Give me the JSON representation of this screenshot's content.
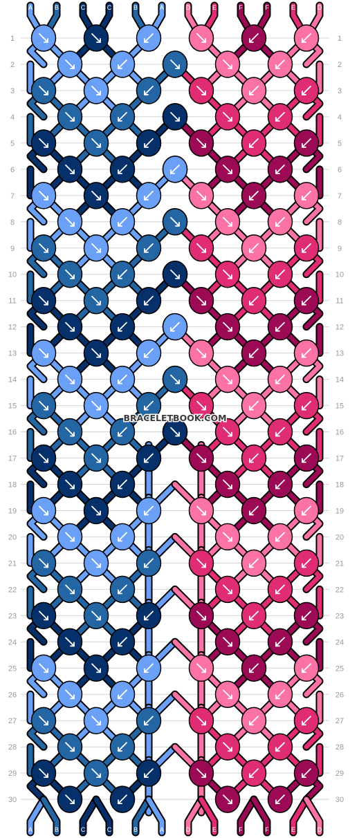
{
  "watermark": "BRACELETBOOK.COM",
  "colors": {
    "A": "#6aa0f5",
    "B": "#2465a4",
    "C": "#06306a",
    "D": "#fb72a6",
    "E": "#df2c72",
    "F": "#9c0954",
    "outline": "#000000",
    "grid": "#d4d4d4",
    "row_label": "#9a9a9a"
  },
  "strands_top": [
    "A",
    "B",
    "C",
    "C",
    "B",
    "A",
    "D",
    "E",
    "F",
    "F",
    "E",
    "D"
  ],
  "strands_bottom": [
    "A",
    "B",
    "C",
    "C",
    "B",
    "A",
    "D",
    "E",
    "F",
    "F",
    "E",
    "D"
  ],
  "row_numbers": [
    "1",
    "2",
    "3",
    "4",
    "5",
    "6",
    "7",
    "8",
    "9",
    "10",
    "11",
    "12",
    "13",
    "14",
    "15",
    "16",
    "17",
    "18",
    "19",
    "20",
    "21",
    "22",
    "23",
    "24",
    "25",
    "26",
    "27",
    "28",
    "29",
    "30"
  ],
  "left_panel_rows": [
    {
      "row": "1",
      "knots": [
        [
          "A",
          "dr"
        ],
        [
          "C",
          "dr"
        ],
        [
          "A",
          "dl"
        ]
      ]
    },
    {
      "row": "2",
      "knots": [
        [
          "A",
          "dr"
        ],
        [
          "A",
          "dl"
        ],
        [
          "B",
          "dr"
        ]
      ]
    },
    {
      "row": "3",
      "knots": [
        [
          "B",
          "dr"
        ],
        [
          "A",
          "dr"
        ],
        [
          "B",
          "dl"
        ]
      ]
    },
    {
      "row": "4",
      "knots": [
        [
          "B",
          "dr"
        ],
        [
          "B",
          "dl"
        ],
        [
          "C",
          "dr"
        ]
      ]
    },
    {
      "row": "5",
      "knots": [
        [
          "C",
          "dr"
        ],
        [
          "B",
          "dr"
        ],
        [
          "C",
          "dl"
        ]
      ]
    },
    {
      "row": "6",
      "knots": [
        [
          "C",
          "dr"
        ],
        [
          "C",
          "dl"
        ],
        [
          "A",
          "dl"
        ]
      ]
    },
    {
      "row": "7",
      "knots": [
        [
          "A",
          "dr"
        ],
        [
          "C",
          "dr"
        ],
        [
          "A",
          "dl"
        ]
      ]
    },
    {
      "row": "8",
      "knots": [
        [
          "A",
          "dr"
        ],
        [
          "A",
          "dl"
        ],
        [
          "B",
          "dr"
        ]
      ]
    },
    {
      "row": "9",
      "knots": [
        [
          "B",
          "dr"
        ],
        [
          "A",
          "dr"
        ],
        [
          "B",
          "dl"
        ]
      ]
    },
    {
      "row": "10",
      "knots": [
        [
          "B",
          "dr"
        ],
        [
          "B",
          "dl"
        ],
        [
          "C",
          "dr"
        ]
      ]
    },
    {
      "row": "11",
      "knots": [
        [
          "C",
          "dr"
        ],
        [
          "B",
          "dr"
        ],
        [
          "C",
          "dl"
        ]
      ]
    },
    {
      "row": "12",
      "knots": [
        [
          "C",
          "dr"
        ],
        [
          "C",
          "dl"
        ],
        [
          "A",
          "dl"
        ]
      ]
    },
    {
      "row": "13",
      "knots": [
        [
          "A",
          "dr"
        ],
        [
          "C",
          "dr"
        ],
        [
          "A",
          "dl"
        ]
      ]
    },
    {
      "row": "14",
      "knots": [
        [
          "A",
          "dr"
        ],
        [
          "A",
          "dl"
        ],
        [
          "B",
          "dr"
        ]
      ]
    },
    {
      "row": "15",
      "knots": [
        [
          "B",
          "dr"
        ],
        [
          "A",
          "dr"
        ],
        [
          "B",
          "dl"
        ]
      ]
    },
    {
      "row": "16",
      "knots": [
        [
          "B",
          "dr"
        ],
        [
          "B",
          "dl"
        ],
        [
          "C",
          "dr"
        ]
      ]
    },
    {
      "row": "17",
      "knots": [
        [
          "C",
          "dr"
        ],
        [
          "B",
          "dr"
        ],
        [
          "C",
          "dl"
        ]
      ]
    },
    {
      "row": "18",
      "knots": [
        [
          "C",
          "dr"
        ],
        [
          "C",
          "dl"
        ]
      ]
    },
    {
      "row": "19",
      "knots": [
        [
          "A",
          "dr"
        ],
        [
          "C",
          "dr"
        ],
        [
          "A",
          "dl"
        ]
      ]
    },
    {
      "row": "20",
      "knots": [
        [
          "A",
          "dr"
        ],
        [
          "A",
          "dl"
        ]
      ]
    },
    {
      "row": "21",
      "knots": [
        [
          "B",
          "dr"
        ],
        [
          "A",
          "dr"
        ],
        [
          "B",
          "dl"
        ]
      ]
    },
    {
      "row": "22",
      "knots": [
        [
          "B",
          "dr"
        ],
        [
          "B",
          "dl"
        ]
      ]
    },
    {
      "row": "23",
      "knots": [
        [
          "C",
          "dr"
        ],
        [
          "B",
          "dr"
        ],
        [
          "C",
          "dl"
        ]
      ]
    },
    {
      "row": "24",
      "knots": [
        [
          "C",
          "dr"
        ],
        [
          "C",
          "dl"
        ]
      ]
    },
    {
      "row": "25",
      "knots": [
        [
          "A",
          "dr"
        ],
        [
          "C",
          "dr"
        ],
        [
          "A",
          "dl"
        ]
      ]
    },
    {
      "row": "26",
      "knots": [
        [
          "A",
          "dr"
        ],
        [
          "A",
          "dl"
        ]
      ]
    },
    {
      "row": "27",
      "knots": [
        [
          "B",
          "dr"
        ],
        [
          "A",
          "dr"
        ],
        [
          "B",
          "dl"
        ]
      ]
    },
    {
      "row": "28",
      "knots": [
        [
          "B",
          "dr"
        ],
        [
          "B",
          "dl"
        ]
      ]
    },
    {
      "row": "29",
      "knots": [
        [
          "C",
          "dr"
        ],
        [
          "B",
          "dr"
        ],
        [
          "C",
          "dl"
        ]
      ]
    },
    {
      "row": "30",
      "knots": [
        [
          "C",
          "dr"
        ],
        [
          "C",
          "dl"
        ]
      ]
    }
  ]
}
